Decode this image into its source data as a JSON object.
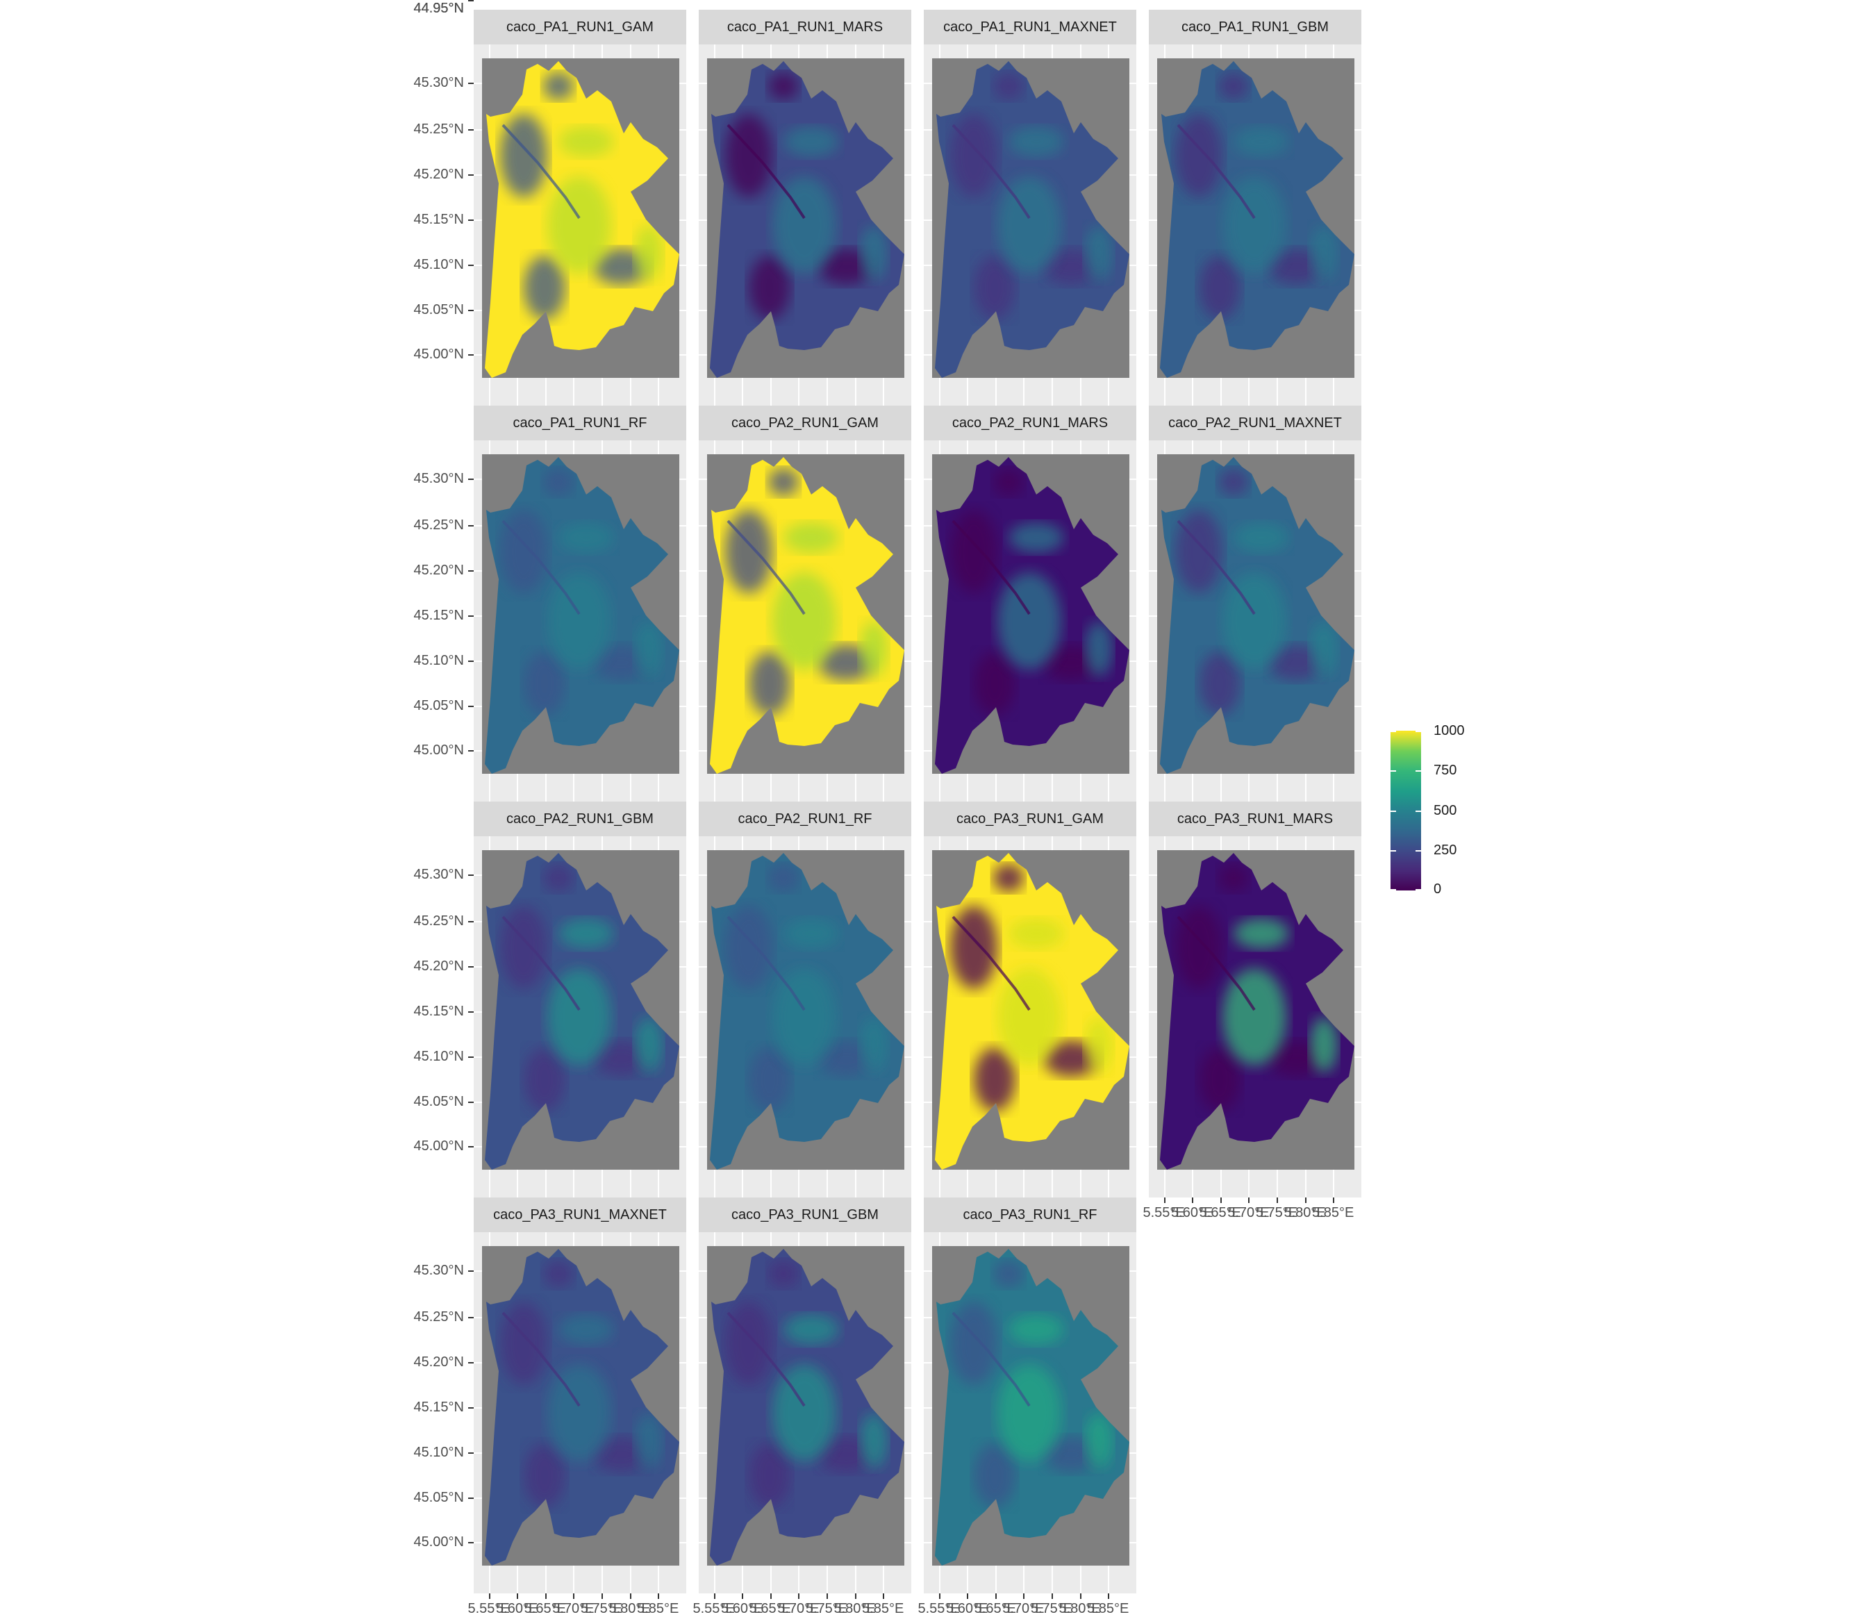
{
  "chart_data": {
    "type": "heatmap",
    "title": "",
    "xlabel": "",
    "ylabel": "",
    "panels": [
      {
        "name": "caco_PA1_RUN1_GAM",
        "base": "#fde725",
        "mid": "#b8de29",
        "low": "#3b528b"
      },
      {
        "name": "caco_PA1_RUN1_MARS",
        "base": "#3e4a89",
        "mid": "#2a788e",
        "low": "#440154"
      },
      {
        "name": "caco_PA1_RUN1_MAXNET",
        "base": "#3b528b",
        "mid": "#2a788e",
        "low": "#46327e"
      },
      {
        "name": "caco_PA1_RUN1_GBM",
        "base": "#355f8d",
        "mid": "#2a788e",
        "low": "#472d7b"
      },
      {
        "name": "caco_PA1_RUN1_RF",
        "base": "#2f6b8e",
        "mid": "#277f8e",
        "low": "#3b528b"
      },
      {
        "name": "caco_PA2_RUN1_GAM",
        "base": "#fde725",
        "mid": "#a5db36",
        "low": "#3e4a89"
      },
      {
        "name": "caco_PA2_RUN1_MARS",
        "base": "#3b0f70",
        "mid": "#2a788e",
        "low": "#440154"
      },
      {
        "name": "caco_PA2_RUN1_MAXNET",
        "base": "#31688e",
        "mid": "#26828e",
        "low": "#46327e"
      },
      {
        "name": "caco_PA2_RUN1_GBM",
        "base": "#3b528b",
        "mid": "#21918c",
        "low": "#46327e"
      },
      {
        "name": "caco_PA2_RUN1_RF",
        "base": "#2f6b8e",
        "mid": "#277f8e",
        "low": "#3b528b"
      },
      {
        "name": "caco_PA3_RUN1_GAM",
        "base": "#fde725",
        "mid": "#d2e21b",
        "low": "#440154"
      },
      {
        "name": "caco_PA3_RUN1_MARS",
        "base": "#3b0f70",
        "mid": "#35b779",
        "low": "#440154"
      },
      {
        "name": "caco_PA3_RUN1_MAXNET",
        "base": "#3b528b",
        "mid": "#2c728e",
        "low": "#46327e"
      },
      {
        "name": "caco_PA3_RUN1_GBM",
        "base": "#3e4a89",
        "mid": "#21918c",
        "low": "#472d7b"
      },
      {
        "name": "caco_PA3_RUN1_RF",
        "base": "#2a788e",
        "mid": "#22a884",
        "low": "#3b528b"
      }
    ],
    "y_ticks": [
      "45.30°N",
      "45.25°N",
      "45.20°N",
      "45.15°N",
      "45.10°N",
      "45.05°N",
      "45.00°N",
      "44.95°N"
    ],
    "x_ticks": [
      "5.55°E",
      "5.60°E",
      "5.65°E",
      "5.70°E",
      "5.75°E",
      "5.80°E",
      "5.85°E"
    ],
    "legend": {
      "ticks": [
        1000,
        750,
        500,
        250,
        0
      ],
      "range": [
        0,
        1000
      ],
      "palette": "viridis"
    }
  }
}
